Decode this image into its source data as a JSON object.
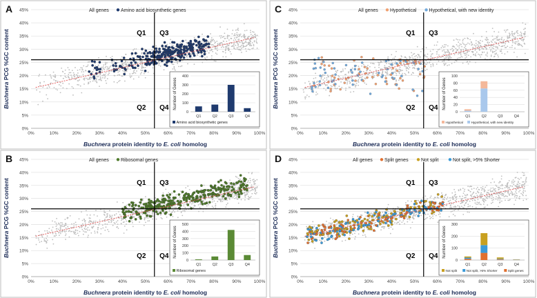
{
  "chart_data": [
    {
      "type": "scatter",
      "panel_label": "A",
      "legend": [
        "All genes",
        "Amino acid biosynthetic genes"
      ],
      "highlight_color": "#1f3a6e",
      "highlight_kind": "aa",
      "xlabel_parts": [
        "Buchnera",
        " protein identity to ",
        "E. coli",
        " homolog"
      ],
      "ylabel_parts": [
        "Buchnera",
        " PCG %GC content"
      ],
      "x_ticks": [
        "0%",
        "10%",
        "20%",
        "30%",
        "40%",
        "50%",
        "60%",
        "70%",
        "80%",
        "90%",
        "100%"
      ],
      "y_ticks": [
        "0%",
        "5%",
        "10%",
        "15%",
        "20%",
        "25%",
        "30%",
        "35%",
        "40%",
        "45%"
      ],
      "xlim": [
        0,
        1
      ],
      "ylim": [
        0,
        0.45
      ],
      "divider": {
        "x": 0.54,
        "y": 0.26
      },
      "trendline": {
        "x0": 0.02,
        "y0": 0.155,
        "x1": 0.98,
        "y1": 0.345
      },
      "quadrants": [
        "Q1",
        "Q2",
        "Q3",
        "Q4"
      ],
      "inset": {
        "type": "bar",
        "ylabel": "Number of Genes",
        "categories": [
          "Q1",
          "Q2",
          "Q3",
          "Q4"
        ],
        "y_ticks": [
          "0",
          "100",
          "200",
          "300",
          "400"
        ],
        "ylim": [
          0,
          400
        ],
        "series": [
          {
            "name": "Amino acid biosynthetic genes",
            "values": [
              60,
              80,
              300,
              40
            ],
            "color": "#1f3a6e"
          }
        ]
      }
    },
    {
      "type": "scatter",
      "panel_label": "C",
      "legend": [
        "All genes",
        "Hypothetical",
        "Hypothetical, with new identity"
      ],
      "highlight_colors": [
        "#f0a070",
        "#6fa8dc"
      ],
      "highlight_kind": "hypo",
      "xlabel_parts": [
        "Buchnera",
        " protein identity to ",
        "E. coli",
        " homolog"
      ],
      "ylabel_parts": [
        "Buchnera",
        " PCG %GC content"
      ],
      "x_ticks": [
        "0%",
        "10%",
        "20%",
        "30%",
        "40%",
        "50%",
        "60%",
        "70%",
        "80%",
        "90%",
        "100%"
      ],
      "y_ticks": [
        "0%",
        "5%",
        "10%",
        "15%",
        "20%",
        "25%",
        "30%",
        "35%",
        "40%",
        "45%"
      ],
      "xlim": [
        0,
        1
      ],
      "ylim": [
        0,
        0.45
      ],
      "divider": {
        "x": 0.54,
        "y": 0.26
      },
      "trendline": {
        "x0": 0.02,
        "y0": 0.155,
        "x1": 0.98,
        "y1": 0.345
      },
      "quadrants": [
        "Q1",
        "Q2",
        "Q3",
        "Q4"
      ],
      "inset": {
        "type": "stacked-bar",
        "ylabel": "Number of Genes",
        "categories": [
          "Q1",
          "Q2",
          "Q3",
          "Q4"
        ],
        "y_ticks": [
          "0",
          "20",
          "40",
          "60",
          "80",
          "100"
        ],
        "ylim": [
          0,
          100
        ],
        "series": [
          {
            "name": "Hypothetical, with new identity",
            "values": [
              3,
              65,
              0,
              0
            ],
            "color": "#a9c8ec"
          },
          {
            "name": "Hypothetical",
            "values": [
              4,
              20,
              0,
              0
            ],
            "color": "#f4b89a"
          }
        ],
        "legend_order": [
          "Hypothetical",
          "Hypothetical, with new identity"
        ]
      }
    },
    {
      "type": "scatter",
      "panel_label": "B",
      "legend": [
        "All genes",
        "Ribosomal genes"
      ],
      "highlight_color": "#4e7a2a",
      "highlight_kind": "ribo",
      "xlabel_parts": [
        "Buchnera",
        " protein identity to ",
        "E. coli",
        " homolog"
      ],
      "ylabel_parts": [
        "Buchnera",
        " PCG %GC content"
      ],
      "x_ticks": [
        "0%",
        "10%",
        "20%",
        "30%",
        "40%",
        "50%",
        "60%",
        "70%",
        "80%",
        "90%",
        "100%"
      ],
      "y_ticks": [
        "0%",
        "5%",
        "10%",
        "15%",
        "20%",
        "25%",
        "30%",
        "35%",
        "40%",
        "45%"
      ],
      "xlim": [
        0,
        1
      ],
      "ylim": [
        0,
        0.45
      ],
      "divider": {
        "x": 0.54,
        "y": 0.26
      },
      "trendline": {
        "x0": 0.02,
        "y0": 0.155,
        "x1": 0.98,
        "y1": 0.345
      },
      "quadrants": [
        "Q1",
        "Q2",
        "Q3",
        "Q4"
      ],
      "inset": {
        "type": "bar",
        "ylabel": "Number of Genes",
        "categories": [
          "Q1",
          "Q2",
          "Q3",
          "Q4"
        ],
        "y_ticks": [
          "0",
          "100",
          "200",
          "300",
          "400",
          "500"
        ],
        "ylim": [
          0,
          500
        ],
        "series": [
          {
            "name": "Ribosomal genes",
            "values": [
              10,
              50,
              420,
              70
            ],
            "color": "#5a8a35"
          }
        ]
      }
    },
    {
      "type": "scatter",
      "panel_label": "D",
      "legend": [
        "All genes",
        "Split genes",
        "Not split",
        "Not split, >5% Shorter"
      ],
      "highlight_colors": [
        "#e07030",
        "#c8a020",
        "#3a9ad8"
      ],
      "highlight_kind": "split",
      "xlabel_parts": [
        "Buchnera",
        " protein identity to ",
        "E. coli",
        " homolog"
      ],
      "ylabel_parts": [
        "Buchnera",
        " PCG %GC content"
      ],
      "x_ticks": [
        "0%",
        "10%",
        "20%",
        "30%",
        "40%",
        "50%",
        "60%",
        "70%",
        "80%",
        "90%",
        "100%"
      ],
      "y_ticks": [
        "0%",
        "5%",
        "10%",
        "15%",
        "20%",
        "25%",
        "30%",
        "35%",
        "40%",
        "45%"
      ],
      "xlim": [
        0,
        1
      ],
      "ylim": [
        0,
        0.45
      ],
      "divider": {
        "x": 0.54,
        "y": 0.26
      },
      "trendline": {
        "x0": 0.02,
        "y0": 0.155,
        "x1": 0.98,
        "y1": 0.345
      },
      "quadrants": [
        "Q1",
        "Q2",
        "Q3",
        "Q4"
      ],
      "inset": {
        "type": "stacked-bar",
        "ylabel": "Number of Genes",
        "categories": [
          "Q1",
          "Q2",
          "Q3",
          "Q4"
        ],
        "y_ticks": [
          "0",
          "100",
          "200",
          "300"
        ],
        "ylim": [
          0,
          300
        ],
        "series": [
          {
            "name": "Split genes",
            "values": [
              10,
              60,
              5,
              2
            ],
            "color": "#e07030"
          },
          {
            "name": "Not split, >5% Shorter",
            "values": [
              10,
              65,
              5,
              1
            ],
            "color": "#3a9ad8"
          },
          {
            "name": "Not split",
            "values": [
              10,
              100,
              12,
              2
            ],
            "color": "#c8a020"
          }
        ],
        "legend_order": [
          "Not split",
          "Not split, >5% Shorter",
          "Split genes"
        ]
      }
    }
  ]
}
